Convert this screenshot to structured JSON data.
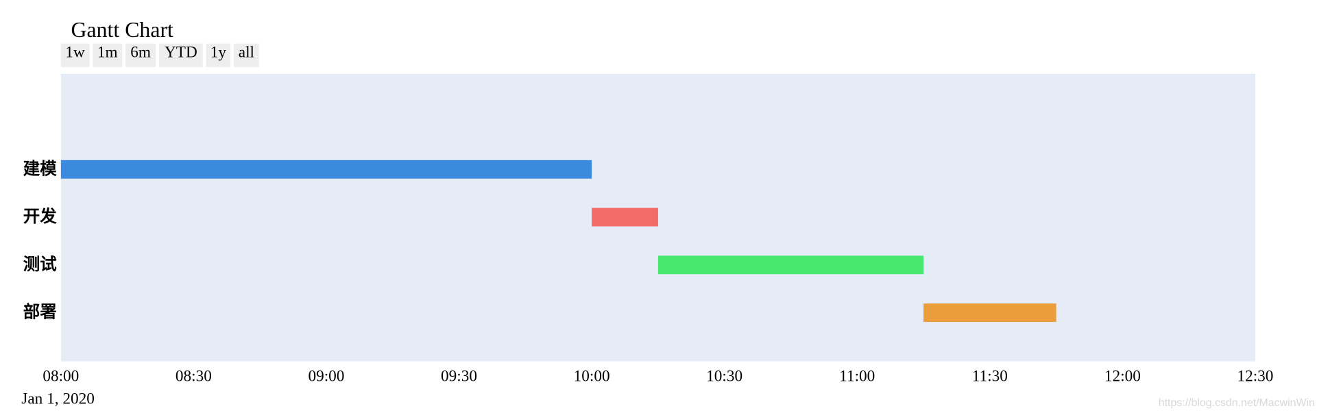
{
  "chart_data": {
    "type": "gantt",
    "title": "Gantt Chart",
    "range_buttons": [
      "1w",
      "1m",
      "6m",
      "YTD",
      "1y",
      "all"
    ],
    "tasks": [
      {
        "name": "建模",
        "start": "2020-01-01 08:00",
        "finish": "2020-01-01 10:00",
        "color": "#3a8bdf"
      },
      {
        "name": "开发",
        "start": "2020-01-01 10:00",
        "finish": "2020-01-01 10:15",
        "color": "#f26b66"
      },
      {
        "name": "测试",
        "start": "2020-01-01 10:15",
        "finish": "2020-01-01 11:15",
        "color": "#48e86e"
      },
      {
        "name": "部署",
        "start": "2020-01-01 11:15",
        "finish": "2020-01-01 11:45",
        "color": "#eb9c3b"
      }
    ],
    "xlim": [
      "2020-01-01 08:00",
      "2020-01-01 12:30"
    ],
    "xticks": [
      {
        "value": "2020-01-01 08:00",
        "label": "08:00"
      },
      {
        "value": "2020-01-01 08:30",
        "label": "08:30"
      },
      {
        "value": "2020-01-01 09:00",
        "label": "09:00"
      },
      {
        "value": "2020-01-01 09:30",
        "label": "09:30"
      },
      {
        "value": "2020-01-01 10:00",
        "label": "10:00"
      },
      {
        "value": "2020-01-01 10:30",
        "label": "10:30"
      },
      {
        "value": "2020-01-01 11:00",
        "label": "11:00"
      },
      {
        "value": "2020-01-01 11:30",
        "label": "11:30"
      },
      {
        "value": "2020-01-01 12:00",
        "label": "12:00"
      },
      {
        "value": "2020-01-01 12:30",
        "label": "12:30"
      }
    ],
    "x_date_label": "Jan 1, 2020",
    "plot_background": "#e5ecf6",
    "watermark": "https://blog.csdn.net/MacwinWin"
  }
}
